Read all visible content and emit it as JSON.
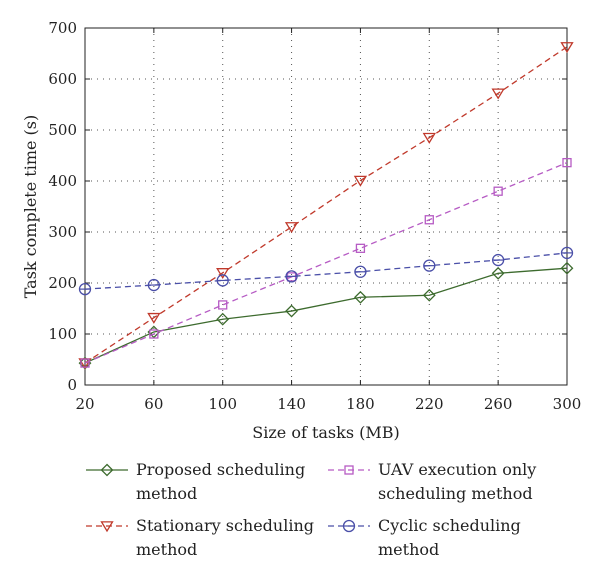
{
  "chart_data": {
    "type": "line",
    "xlabel": "Size of tasks (MB)",
    "ylabel": "Task complete time (s)",
    "x": [
      20,
      60,
      100,
      140,
      180,
      220,
      260,
      300
    ],
    "xlim": [
      20,
      300
    ],
    "ylim": [
      0,
      700
    ],
    "xticks": [
      "20",
      "60",
      "100",
      "140",
      "180",
      "220",
      "260",
      "300"
    ],
    "yticks": [
      "0",
      "100",
      "200",
      "300",
      "400",
      "500",
      "600",
      "700"
    ],
    "grid": "dotted",
    "legend_position": "bottom",
    "series": [
      {
        "name": "Proposed scheduling method",
        "color": "#3d6b2e",
        "dash": "solid",
        "marker": "diamond",
        "values": [
          43,
          104,
          129,
          145,
          172,
          176,
          219,
          229
        ]
      },
      {
        "name": "Stationary scheduling method",
        "color": "#c0392b",
        "dash": "dashed",
        "marker": "triangle-down",
        "values": [
          43,
          132,
          220,
          310,
          401,
          485,
          572,
          663
        ]
      },
      {
        "name": "UAV execution only scheduling method",
        "color": "#b65bc4",
        "dash": "dashed",
        "marker": "square",
        "values": [
          43,
          100,
          157,
          212,
          268,
          324,
          380,
          436
        ]
      },
      {
        "name": "Cyclic scheduling method",
        "color": "#4a4fa8",
        "dash": "dashed",
        "marker": "circle",
        "values": [
          188,
          196,
          205,
          213,
          222,
          234,
          245,
          259
        ]
      }
    ]
  },
  "legend": [
    {
      "line1": "Proposed scheduling",
      "line2": "method"
    },
    {
      "line1": "UAV execution only",
      "line2": "scheduling method"
    },
    {
      "line1": "Stationary scheduling",
      "line2": "method"
    },
    {
      "line1": "Cyclic scheduling",
      "line2": "method"
    }
  ]
}
